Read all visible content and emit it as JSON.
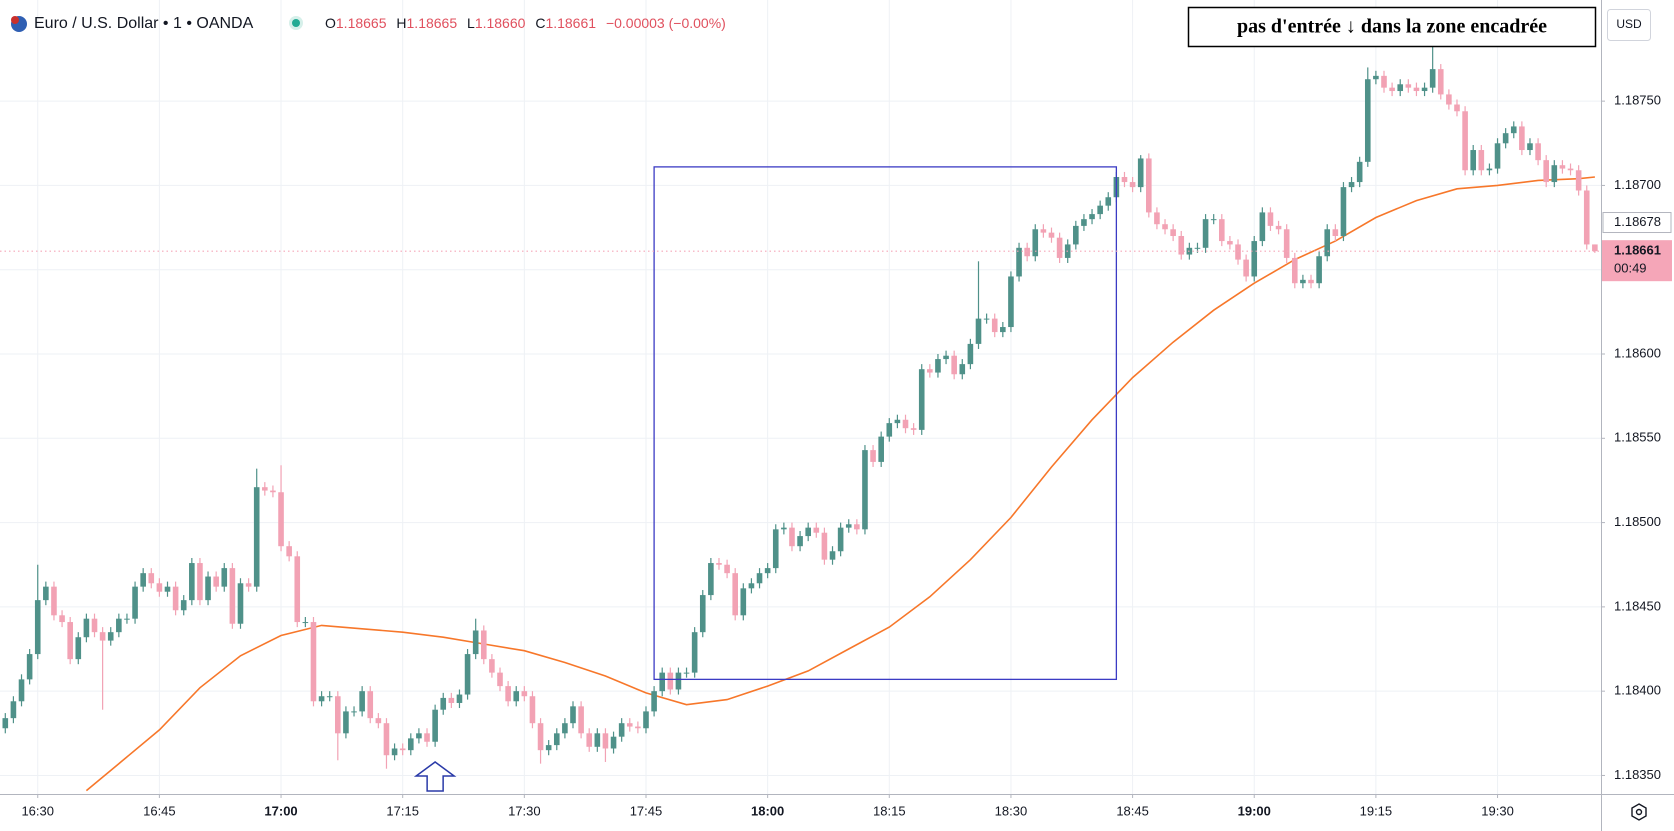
{
  "header": {
    "symbol": "Euro / U.S. Dollar • 1 • OANDA",
    "ohlc": [
      {
        "key": "O",
        "value": "1.18665"
      },
      {
        "key": "H",
        "value": "1.18665"
      },
      {
        "key": "L",
        "value": "1.18660"
      },
      {
        "key": "C",
        "value": "1.18661"
      }
    ],
    "change": "−0.00003 (−0.00%)"
  },
  "chart_data": {
    "type": "candlestick",
    "annotation": "pas d'entrée ↓ dans la zone encadrée",
    "currency": "USD",
    "up_color": "#4f9189",
    "down_color": "#f2a2b4",
    "grid": true,
    "x": [
      "16:26",
      "16:27",
      "16:28",
      "16:29",
      "16:30",
      "16:31",
      "16:32",
      "16:33",
      "16:34",
      "16:35",
      "16:36",
      "16:37",
      "16:38",
      "16:39",
      "16:40",
      "16:41",
      "16:42",
      "16:43",
      "16:44",
      "16:45",
      "16:46",
      "16:47",
      "16:48",
      "16:49",
      "16:50",
      "16:51",
      "16:52",
      "16:53",
      "16:54",
      "16:55",
      "16:56",
      "16:57",
      "16:58",
      "16:59",
      "17:00",
      "17:01",
      "17:02",
      "17:03",
      "17:04",
      "17:05",
      "17:06",
      "17:07",
      "17:08",
      "17:09",
      "17:10",
      "17:11",
      "17:12",
      "17:13",
      "17:14",
      "17:15",
      "17:16",
      "17:17",
      "17:18",
      "17:19",
      "17:20",
      "17:21",
      "17:22",
      "17:23",
      "17:24",
      "17:25",
      "17:26",
      "17:27",
      "17:28",
      "17:29",
      "17:30",
      "17:31",
      "17:32",
      "17:33",
      "17:34",
      "17:35",
      "17:36",
      "17:37",
      "17:38",
      "17:39",
      "17:40",
      "17:41",
      "17:42",
      "17:43",
      "17:44",
      "17:45",
      "17:46",
      "17:47",
      "17:48",
      "17:49",
      "17:50",
      "17:51",
      "17:52",
      "17:53",
      "17:54",
      "17:55",
      "17:56",
      "17:57",
      "17:58",
      "17:59",
      "18:00",
      "18:01",
      "18:02",
      "18:03",
      "18:04",
      "18:05",
      "18:06",
      "18:07",
      "18:08",
      "18:09",
      "18:10",
      "18:11",
      "18:12",
      "18:13",
      "18:14",
      "18:15",
      "18:16",
      "18:17",
      "18:18",
      "18:19",
      "18:20",
      "18:21",
      "18:22",
      "18:23",
      "18:24",
      "18:25",
      "18:26",
      "18:27",
      "18:28",
      "18:29",
      "18:30",
      "18:31",
      "18:32",
      "18:33",
      "18:34",
      "18:35",
      "18:36",
      "18:37",
      "18:38",
      "18:39",
      "18:40",
      "18:41",
      "18:42",
      "18:43",
      "18:44",
      "18:45",
      "18:46",
      "18:47",
      "18:48",
      "18:49",
      "18:50",
      "18:51",
      "18:52",
      "18:53",
      "18:54",
      "18:55",
      "18:56",
      "18:57",
      "18:58",
      "18:59",
      "19:00",
      "19:01",
      "19:02",
      "19:03",
      "19:04",
      "19:05",
      "19:06",
      "19:07",
      "19:08",
      "19:09",
      "19:10",
      "19:11",
      "19:12",
      "19:13",
      "19:14",
      "19:15",
      "19:16",
      "19:17",
      "19:18",
      "19:19",
      "19:20",
      "19:21",
      "19:22",
      "19:23",
      "19:24",
      "19:25",
      "19:26",
      "19:27",
      "19:28",
      "19:29",
      "19:30",
      "19:31",
      "19:32",
      "19:33",
      "19:34",
      "19:35",
      "19:36",
      "19:37",
      "19:38",
      "19:39",
      "19:40",
      "19:41",
      "19:42"
    ],
    "open": [
      1.18378,
      1.18384,
      1.18394,
      1.18407,
      1.18422,
      1.18454,
      1.18462,
      1.18445,
      1.18441,
      1.18419,
      1.18432,
      1.18443,
      1.18435,
      1.1843,
      1.18435,
      1.18443,
      1.18443,
      1.18462,
      1.1847,
      1.18464,
      1.18459,
      1.18462,
      1.18448,
      1.18454,
      1.18476,
      1.18454,
      1.18468,
      1.18462,
      1.18473,
      1.1844,
      1.18464,
      1.18462,
      1.18521,
      1.18519,
      1.18518,
      1.18486,
      1.1848,
      1.18441,
      1.18441,
      1.18394,
      1.18397,
      1.18397,
      1.18375,
      1.18388,
      1.18388,
      1.184,
      1.18384,
      1.18381,
      1.18362,
      1.18366,
      1.18365,
      1.18372,
      1.18375,
      1.1837,
      1.18389,
      1.18396,
      1.18393,
      1.18398,
      1.18422,
      1.18436,
      1.18419,
      1.18411,
      1.18403,
      1.18394,
      1.184,
      1.18397,
      1.18381,
      1.18365,
      1.18368,
      1.18375,
      1.18381,
      1.18391,
      1.18375,
      1.18367,
      1.18375,
      1.18366,
      1.18373,
      1.18381,
      1.18379,
      1.18378,
      1.18388,
      1.184,
      1.18411,
      1.18401,
      1.18411,
      1.18411,
      1.18435,
      1.18457,
      1.18476,
      1.18475,
      1.1847,
      1.18445,
      1.18461,
      1.18464,
      1.1847,
      1.18473,
      1.18496,
      1.18497,
      1.18486,
      1.18492,
      1.18497,
      1.18494,
      1.18478,
      1.18483,
      1.18497,
      1.18499,
      1.18496,
      1.18543,
      1.18536,
      1.18551,
      1.18559,
      1.18561,
      1.18556,
      1.18555,
      1.18591,
      1.18589,
      1.18597,
      1.18599,
      1.18588,
      1.18594,
      1.18606,
      1.18621,
      1.18621,
      1.18613,
      1.18616,
      1.18646,
      1.18663,
      1.18658,
      1.18674,
      1.18672,
      1.18669,
      1.18657,
      1.18665,
      1.18676,
      1.1868,
      1.18683,
      1.18688,
      1.18693,
      1.18705,
      1.18702,
      1.18699,
      1.18716,
      1.18684,
      1.18677,
      1.18674,
      1.1867,
      1.18659,
      1.18663,
      1.18663,
      1.1868,
      1.1868,
      1.18667,
      1.18665,
      1.18656,
      1.18646,
      1.18667,
      1.18684,
      1.18676,
      1.18674,
      1.18657,
      1.18642,
      1.18644,
      1.18642,
      1.18658,
      1.18674,
      1.1867,
      1.18699,
      1.18702,
      1.18714,
      1.18763,
      1.18765,
      1.18758,
      1.18756,
      1.1876,
      1.18758,
      1.18756,
      1.18758,
      1.18769,
      1.18754,
      1.18748,
      1.18744,
      1.18709,
      1.18721,
      1.18709,
      1.1871,
      1.18725,
      1.18731,
      1.18735,
      1.18721,
      1.18725,
      1.18715,
      1.18702,
      1.18712,
      1.1871,
      1.18709,
      1.18697,
      1.18665
    ],
    "high": [
      1.18387,
      1.18397,
      1.1841,
      1.18425,
      1.18475,
      1.18465,
      1.18465,
      1.18448,
      1.18444,
      1.18435,
      1.18446,
      1.18446,
      1.18438,
      1.18438,
      1.18446,
      1.18446,
      1.18465,
      1.18473,
      1.18473,
      1.18467,
      1.18465,
      1.18465,
      1.18457,
      1.18479,
      1.18479,
      1.18471,
      1.18471,
      1.18476,
      1.18476,
      1.18467,
      1.18467,
      1.18532,
      1.18524,
      1.18522,
      1.18534,
      1.18489,
      1.18483,
      1.18444,
      1.18444,
      1.184,
      1.184,
      1.184,
      1.18391,
      1.18391,
      1.18403,
      1.18403,
      1.18387,
      1.18384,
      1.18369,
      1.18369,
      1.18375,
      1.18378,
      1.18378,
      1.18392,
      1.18399,
      1.18399,
      1.18401,
      1.18425,
      1.18443,
      1.18439,
      1.18422,
      1.18414,
      1.18406,
      1.18403,
      1.18403,
      1.184,
      1.18384,
      1.18371,
      1.18378,
      1.18384,
      1.18394,
      1.18394,
      1.18378,
      1.18378,
      1.18378,
      1.18376,
      1.18384,
      1.18384,
      1.18382,
      1.18391,
      1.18403,
      1.18414,
      1.18414,
      1.18414,
      1.18414,
      1.18438,
      1.1846,
      1.18479,
      1.18479,
      1.18478,
      1.18473,
      1.18464,
      1.18467,
      1.18473,
      1.18476,
      1.18499,
      1.185,
      1.185,
      1.18495,
      1.185,
      1.185,
      1.18497,
      1.18486,
      1.185,
      1.18502,
      1.18502,
      1.18546,
      1.18546,
      1.18554,
      1.18562,
      1.18564,
      1.18564,
      1.18559,
      1.18594,
      1.18594,
      1.186,
      1.18602,
      1.18602,
      1.18597,
      1.18609,
      1.18655,
      1.18624,
      1.18624,
      1.18619,
      1.18649,
      1.18666,
      1.18666,
      1.18677,
      1.18677,
      1.18675,
      1.18672,
      1.18668,
      1.18679,
      1.18683,
      1.18686,
      1.18691,
      1.18696,
      1.18708,
      1.18708,
      1.18705,
      1.18718,
      1.18719,
      1.18687,
      1.1868,
      1.18677,
      1.18673,
      1.18666,
      1.18666,
      1.18683,
      1.18683,
      1.18683,
      1.1867,
      1.18668,
      1.18659,
      1.1867,
      1.18687,
      1.18687,
      1.18679,
      1.18677,
      1.1866,
      1.18647,
      1.18647,
      1.18661,
      1.18677,
      1.18677,
      1.18702,
      1.18705,
      1.18717,
      1.1877,
      1.18768,
      1.18768,
      1.18761,
      1.18763,
      1.18763,
      1.18761,
      1.18761,
      1.18785,
      1.18772,
      1.18757,
      1.18751,
      1.18747,
      1.18724,
      1.18724,
      1.18713,
      1.18728,
      1.18734,
      1.18738,
      1.18738,
      1.18728,
      1.18728,
      1.18718,
      1.18715,
      1.18715,
      1.18713,
      1.18712,
      1.187,
      1.18665
    ],
    "low": [
      1.18375,
      1.18381,
      1.18391,
      1.18404,
      1.18419,
      1.18451,
      1.18442,
      1.18438,
      1.18416,
      1.18416,
      1.18429,
      1.18432,
      1.18389,
      1.18427,
      1.18432,
      1.1844,
      1.1844,
      1.18459,
      1.18461,
      1.18456,
      1.18456,
      1.18445,
      1.18445,
      1.18451,
      1.18451,
      1.18451,
      1.18459,
      1.18459,
      1.18437,
      1.18437,
      1.18459,
      1.18459,
      1.18516,
      1.18515,
      1.18483,
      1.18477,
      1.18438,
      1.18438,
      1.18391,
      1.18391,
      1.18394,
      1.18359,
      1.18372,
      1.18385,
      1.18385,
      1.18381,
      1.18378,
      1.18354,
      1.18359,
      1.18362,
      1.18362,
      1.18369,
      1.18367,
      1.18367,
      1.18386,
      1.1839,
      1.1839,
      1.18395,
      1.18419,
      1.18416,
      1.18408,
      1.184,
      1.18391,
      1.18391,
      1.18394,
      1.18378,
      1.18357,
      1.18362,
      1.18365,
      1.18372,
      1.18378,
      1.18372,
      1.18364,
      1.18364,
      1.18358,
      1.18363,
      1.1837,
      1.18376,
      1.18375,
      1.18375,
      1.18385,
      1.18397,
      1.18398,
      1.18398,
      1.18408,
      1.18408,
      1.18432,
      1.18454,
      1.18472,
      1.18467,
      1.18442,
      1.18442,
      1.18458,
      1.18461,
      1.18467,
      1.1847,
      1.18493,
      1.18483,
      1.18483,
      1.18489,
      1.18491,
      1.18475,
      1.18475,
      1.1848,
      1.18494,
      1.18493,
      1.18493,
      1.18533,
      1.18533,
      1.18548,
      1.18556,
      1.18553,
      1.18552,
      1.18552,
      1.18586,
      1.18586,
      1.18594,
      1.18585,
      1.18585,
      1.18591,
      1.18603,
      1.18618,
      1.1861,
      1.1861,
      1.18613,
      1.18643,
      1.18655,
      1.18655,
      1.18669,
      1.18666,
      1.18654,
      1.18654,
      1.18662,
      1.18673,
      1.18677,
      1.1868,
      1.18685,
      1.1869,
      1.18699,
      1.18696,
      1.18696,
      1.18681,
      1.18674,
      1.18671,
      1.18667,
      1.18656,
      1.18656,
      1.1866,
      1.1866,
      1.18677,
      1.18664,
      1.18662,
      1.18653,
      1.18643,
      1.18643,
      1.18664,
      1.18673,
      1.18671,
      1.18654,
      1.18639,
      1.18639,
      1.18639,
      1.18639,
      1.18655,
      1.18667,
      1.18667,
      1.18696,
      1.18699,
      1.18711,
      1.1876,
      1.18755,
      1.18753,
      1.18753,
      1.18755,
      1.18753,
      1.18753,
      1.18755,
      1.18751,
      1.18745,
      1.18741,
      1.18706,
      1.18706,
      1.18706,
      1.18706,
      1.18707,
      1.18722,
      1.18728,
      1.18718,
      1.18718,
      1.18712,
      1.18699,
      1.18699,
      1.18707,
      1.18706,
      1.18694,
      1.18662,
      1.1866
    ],
    "close": [
      1.18384,
      1.18394,
      1.18407,
      1.18422,
      1.18454,
      1.18462,
      1.18445,
      1.18441,
      1.18419,
      1.18432,
      1.18443,
      1.18435,
      1.1843,
      1.18435,
      1.18443,
      1.18443,
      1.18462,
      1.1847,
      1.18464,
      1.18459,
      1.18462,
      1.18448,
      1.18454,
      1.18476,
      1.18454,
      1.18468,
      1.18462,
      1.18473,
      1.1844,
      1.18464,
      1.18462,
      1.18521,
      1.18519,
      1.18518,
      1.18486,
      1.1848,
      1.18441,
      1.18441,
      1.18394,
      1.18397,
      1.18397,
      1.18375,
      1.18388,
      1.18388,
      1.184,
      1.18384,
      1.18381,
      1.18362,
      1.18366,
      1.18365,
      1.18372,
      1.18375,
      1.1837,
      1.18389,
      1.18396,
      1.18393,
      1.18398,
      1.18422,
      1.18436,
      1.18419,
      1.18411,
      1.18403,
      1.18394,
      1.184,
      1.18397,
      1.18381,
      1.18365,
      1.18368,
      1.18375,
      1.18381,
      1.18391,
      1.18375,
      1.18367,
      1.18375,
      1.18366,
      1.18373,
      1.18381,
      1.18379,
      1.18378,
      1.18388,
      1.184,
      1.18411,
      1.18401,
      1.18411,
      1.18411,
      1.18435,
      1.18457,
      1.18476,
      1.18475,
      1.1847,
      1.18445,
      1.18461,
      1.18464,
      1.1847,
      1.18473,
      1.18496,
      1.18497,
      1.18486,
      1.18492,
      1.18497,
      1.18494,
      1.18478,
      1.18483,
      1.18497,
      1.18499,
      1.18496,
      1.18543,
      1.18536,
      1.18551,
      1.18559,
      1.18561,
      1.18556,
      1.18555,
      1.18591,
      1.18589,
      1.18597,
      1.18599,
      1.18588,
      1.18594,
      1.18606,
      1.18621,
      1.18621,
      1.18613,
      1.18616,
      1.18646,
      1.18663,
      1.18658,
      1.18674,
      1.18672,
      1.18669,
      1.18657,
      1.18665,
      1.18676,
      1.1868,
      1.18683,
      1.18688,
      1.18693,
      1.18705,
      1.18702,
      1.18699,
      1.18716,
      1.18684,
      1.18677,
      1.18674,
      1.1867,
      1.18659,
      1.18663,
      1.18663,
      1.1868,
      1.1868,
      1.18667,
      1.18665,
      1.18656,
      1.18646,
      1.18667,
      1.18684,
      1.18676,
      1.18674,
      1.18657,
      1.18642,
      1.18644,
      1.18642,
      1.18658,
      1.18674,
      1.1867,
      1.18699,
      1.18702,
      1.18714,
      1.18763,
      1.18765,
      1.18758,
      1.18756,
      1.1876,
      1.18758,
      1.18756,
      1.18758,
      1.18769,
      1.18754,
      1.18748,
      1.18744,
      1.18709,
      1.18721,
      1.18709,
      1.1871,
      1.18725,
      1.18731,
      1.18735,
      1.18721,
      1.18725,
      1.18715,
      1.18702,
      1.18712,
      1.1871,
      1.18709,
      1.18697,
      1.18665,
      1.18661
    ],
    "ma": {
      "color": "#f7772a",
      "x": [
        "16:36",
        "16:40",
        "16:45",
        "16:50",
        "16:55",
        "17:00",
        "17:05",
        "17:10",
        "17:15",
        "17:20",
        "17:25",
        "17:30",
        "17:35",
        "17:40",
        "17:45",
        "17:50",
        "17:55",
        "18:00",
        "18:05",
        "18:10",
        "18:15",
        "18:20",
        "18:25",
        "18:30",
        "18:35",
        "18:40",
        "18:45",
        "18:50",
        "18:55",
        "19:00",
        "19:05",
        "19:10",
        "19:15",
        "19:20",
        "19:25",
        "19:30",
        "19:35",
        "19:40",
        "19:42"
      ],
      "values": [
        1.18341,
        1.18357,
        1.18377,
        1.18402,
        1.18421,
        1.18433,
        1.18439,
        1.18437,
        1.18435,
        1.18432,
        1.18428,
        1.18424,
        1.18417,
        1.18409,
        1.18399,
        1.18392,
        1.18395,
        1.18403,
        1.18412,
        1.18425,
        1.18438,
        1.18456,
        1.18478,
        1.18503,
        1.18533,
        1.18561,
        1.18586,
        1.18607,
        1.18626,
        1.18642,
        1.18656,
        1.18667,
        1.18681,
        1.18691,
        1.18698,
        1.187,
        1.18703,
        1.18704,
        1.18705
      ]
    },
    "zone": {
      "color": "#3b3bc4",
      "x": [
        "17:46",
        "18:43"
      ],
      "y": [
        1.18711,
        1.18407
      ]
    },
    "arrow": {
      "color": "#2a3aa8",
      "x": "17:19",
      "y": 1.18358
    },
    "ylim": [
      1.18339,
      1.1881
    ],
    "yticks": [
      {
        "value": 1.1835,
        "label": "1.18350"
      },
      {
        "value": 1.184,
        "label": "1.18400"
      },
      {
        "value": 1.1845,
        "label": "1.18450"
      },
      {
        "value": 1.185,
        "label": "1.18500"
      },
      {
        "value": 1.1855,
        "label": "1.18550"
      },
      {
        "value": 1.186,
        "label": "1.18600"
      },
      {
        "value": 1.1865,
        "label": "1.18650"
      },
      {
        "value": 1.187,
        "label": "1.18700"
      },
      {
        "value": 1.1875,
        "label": "1.18750"
      }
    ],
    "xticks": [
      "16:30",
      "16:45",
      "17:00",
      "17:15",
      "17:30",
      "17:45",
      "18:00",
      "18:15",
      "18:30",
      "18:45",
      "19:00",
      "19:15",
      "19:30"
    ],
    "price_marker": {
      "value": 1.18678,
      "label": "1.18678"
    },
    "current_price": {
      "value": 1.18661,
      "label": "1.18661",
      "countdown": "00:49",
      "color": "#f5a6b8"
    }
  }
}
